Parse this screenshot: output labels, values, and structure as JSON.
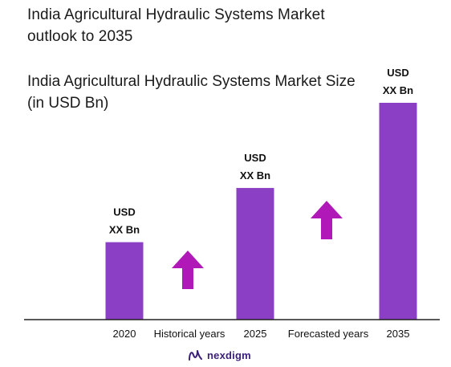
{
  "chart_data": {
    "type": "bar",
    "title": "India Agricultural Hydraulic Systems Market outlook to 2035",
    "subtitle": "India Agricultural Hydraulic Systems Market Size (in USD Bn)",
    "categories": [
      "2020",
      "2025",
      "2035"
    ],
    "values": [
      1.0,
      1.7,
      2.8
    ],
    "value_labels": [
      [
        "USD",
        "XX Bn"
      ],
      [
        "USD",
        "XX Bn"
      ],
      [
        "USD",
        "XX Bn"
      ]
    ],
    "period_labels": [
      "Historical years",
      "Forecasted years"
    ],
    "ylim": [
      0,
      2.8
    ],
    "grid": false,
    "colors": {
      "bar": "#8a3fc4",
      "arrow": "#b118b8",
      "axis": "#222222"
    }
  },
  "brand": {
    "name": "nexdigm"
  }
}
